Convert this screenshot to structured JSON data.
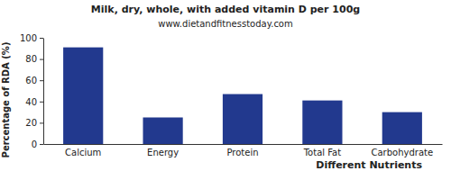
{
  "chart_data": {
    "type": "bar",
    "title": "Milk, dry, whole, with added vitamin D per 100g",
    "subtitle": "www.dietandfitnesstoday.com",
    "x_label": "Different Nutrients",
    "y_label": "Percentage of RDA (%)",
    "categories": [
      "Calcium",
      "Energy",
      "Protein",
      "Total Fat",
      "Carbohydrate"
    ],
    "values": [
      91,
      25,
      47,
      41,
      30
    ],
    "color": "#22398e",
    "ylim": [
      0,
      100
    ],
    "yticks": [
      0,
      20,
      40,
      60,
      80,
      100
    ],
    "grid": false
  }
}
